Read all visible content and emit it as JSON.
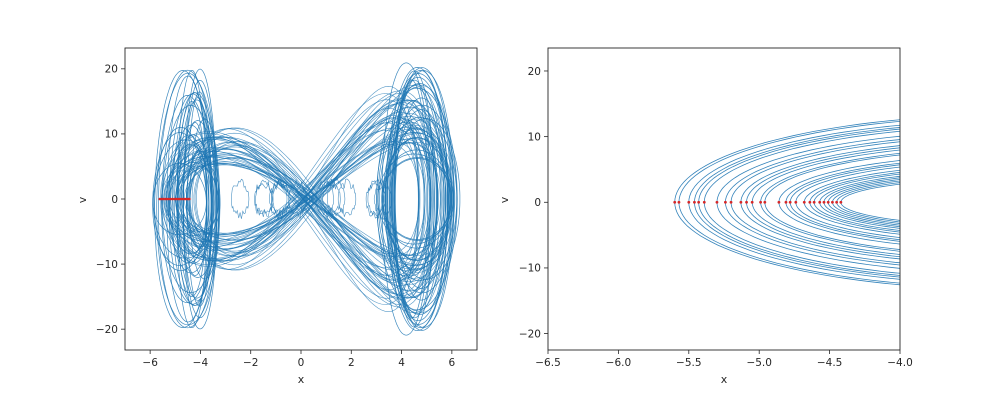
{
  "colors": {
    "trajectory": "#1f77b4",
    "poincare_points": "#d62728",
    "axes": "#262626",
    "background": "#ffffff"
  },
  "chart_data": [
    {
      "type": "line",
      "title": "",
      "xlabel": "x",
      "ylabel": "v",
      "xlim": [
        -7.0,
        7.0
      ],
      "ylim": [
        -23.2,
        23.2
      ],
      "xticks": [
        -6,
        -4,
        -2,
        0,
        2,
        4,
        6
      ],
      "xtick_labels": [
        "−6",
        "−4",
        "−2",
        "0",
        "2",
        "4",
        "6"
      ],
      "yticks": [
        -20,
        -10,
        0,
        10,
        20
      ],
      "ytick_labels": [
        "−20",
        "−10",
        "0",
        "10",
        "20"
      ],
      "grid": false,
      "series": [
        {
          "kind": "phase-trajectory",
          "description_of_shape": "double-lobe chaotic orbit",
          "left_lobe_center": [
            -3.8,
            0
          ],
          "right_lobe_center": [
            3.9,
            0
          ],
          "x_extent": [
            -6.0,
            6.4
          ],
          "v_extent": [
            -21.0,
            21.0
          ]
        },
        {
          "kind": "poincare-section",
          "points": [
            [
              -5.62,
              0
            ],
            [
              -5.55,
              0
            ],
            [
              -5.48,
              0
            ],
            [
              -5.4,
              0
            ],
            [
              -5.33,
              0
            ],
            [
              -5.25,
              0
            ],
            [
              -5.18,
              0
            ],
            [
              -5.1,
              0
            ],
            [
              -5.02,
              0
            ],
            [
              -4.95,
              0
            ],
            [
              -4.87,
              0
            ],
            [
              -4.8,
              0
            ],
            [
              -4.72,
              0
            ],
            [
              -4.65,
              0
            ],
            [
              -4.58,
              0
            ],
            [
              -4.5,
              0
            ],
            [
              -4.44,
              0
            ]
          ]
        }
      ]
    },
    {
      "type": "line",
      "title": "",
      "xlabel": "x",
      "ylabel": "v",
      "xlim": [
        -6.5,
        -4.0
      ],
      "ylim": [
        -22.5,
        23.5
      ],
      "xticks": [
        -6.5,
        -6.0,
        -5.5,
        -5.0,
        -4.5,
        -4.0
      ],
      "xtick_labels": [
        "−6.5",
        "−6.0",
        "−5.5",
        "−5.0",
        "−4.5",
        "−4.0"
      ],
      "yticks": [
        -20,
        -10,
        0,
        10,
        20
      ],
      "ytick_labels": [
        "−20",
        "−10",
        "0",
        "10",
        "20"
      ],
      "grid": false,
      "series": [
        {
          "kind": "phase-trajectory-zoom",
          "description_of_shape": "nested arcs of the left lobe"
        },
        {
          "kind": "poincare-section",
          "points": [
            [
              -5.6,
              0
            ],
            [
              -5.57,
              0
            ],
            [
              -5.5,
              0
            ],
            [
              -5.46,
              0
            ],
            [
              -5.43,
              0
            ],
            [
              -5.39,
              0
            ],
            [
              -5.3,
              0
            ],
            [
              -5.24,
              0
            ],
            [
              -5.2,
              0
            ],
            [
              -5.13,
              0
            ],
            [
              -5.09,
              0
            ],
            [
              -5.05,
              0
            ],
            [
              -4.99,
              0
            ],
            [
              -4.96,
              0
            ],
            [
              -4.86,
              0
            ],
            [
              -4.81,
              0
            ],
            [
              -4.78,
              0
            ],
            [
              -4.74,
              0
            ],
            [
              -4.68,
              0
            ],
            [
              -4.64,
              0
            ],
            [
              -4.61,
              0
            ],
            [
              -4.57,
              0
            ],
            [
              -4.54,
              0
            ],
            [
              -4.51,
              0
            ],
            [
              -4.48,
              0
            ],
            [
              -4.45,
              0
            ],
            [
              -4.42,
              0
            ]
          ]
        }
      ]
    }
  ]
}
